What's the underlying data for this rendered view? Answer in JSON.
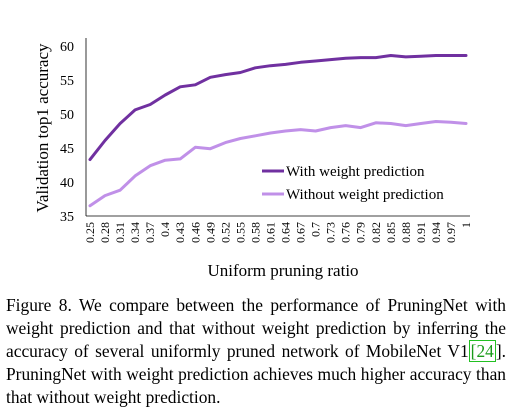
{
  "chart_data": {
    "type": "line",
    "title": "",
    "xlabel": "Uniform pruning ratio",
    "ylabel": "Validation top1 accuracy",
    "ylim": [
      35,
      60
    ],
    "yticks": [
      35,
      40,
      45,
      50,
      55,
      60
    ],
    "grid": false,
    "legend_position": "lower-right",
    "categories": [
      "0.25",
      "0.28",
      "0.31",
      "0.34",
      "0.37",
      "0.4",
      "0.43",
      "0.46",
      "0.49",
      "0.52",
      "0.55",
      "0.58",
      "0.61",
      "0.64",
      "0.67",
      "0.7",
      "0.73",
      "0.76",
      "0.79",
      "0.82",
      "0.85",
      "0.88",
      "0.91",
      "0.94",
      "0.97",
      "1"
    ],
    "series": [
      {
        "name": "With weight prediction",
        "color": "#7030a0",
        "values": [
          43.3,
          46.1,
          48.6,
          50.6,
          51.4,
          52.8,
          54.0,
          54.3,
          55.4,
          55.8,
          56.1,
          56.8,
          57.1,
          57.3,
          57.6,
          57.8,
          58.0,
          58.2,
          58.3,
          58.3,
          58.6,
          58.4,
          58.5,
          58.6,
          58.6,
          58.6
        ]
      },
      {
        "name": "Without weight prediction",
        "color": "#c090e8",
        "values": [
          36.5,
          38.0,
          38.8,
          40.9,
          42.4,
          43.2,
          43.4,
          45.1,
          44.9,
          45.8,
          46.4,
          46.8,
          47.2,
          47.5,
          47.7,
          47.5,
          48.0,
          48.3,
          48.0,
          48.7,
          48.6,
          48.3,
          48.6,
          48.9,
          48.8,
          48.6
        ]
      }
    ]
  },
  "caption": {
    "before": "Figure 8. We compare between the performance of PruningNet with weight prediction and that without weight prediction by inferring the accuracy of several uniformly pruned network of MobileNet V1",
    "ref_open": "[",
    "ref": "24",
    "ref_close": "]",
    "after": ". PruningNet with weight prediction achieves much higher accuracy than that without weight prediction."
  }
}
